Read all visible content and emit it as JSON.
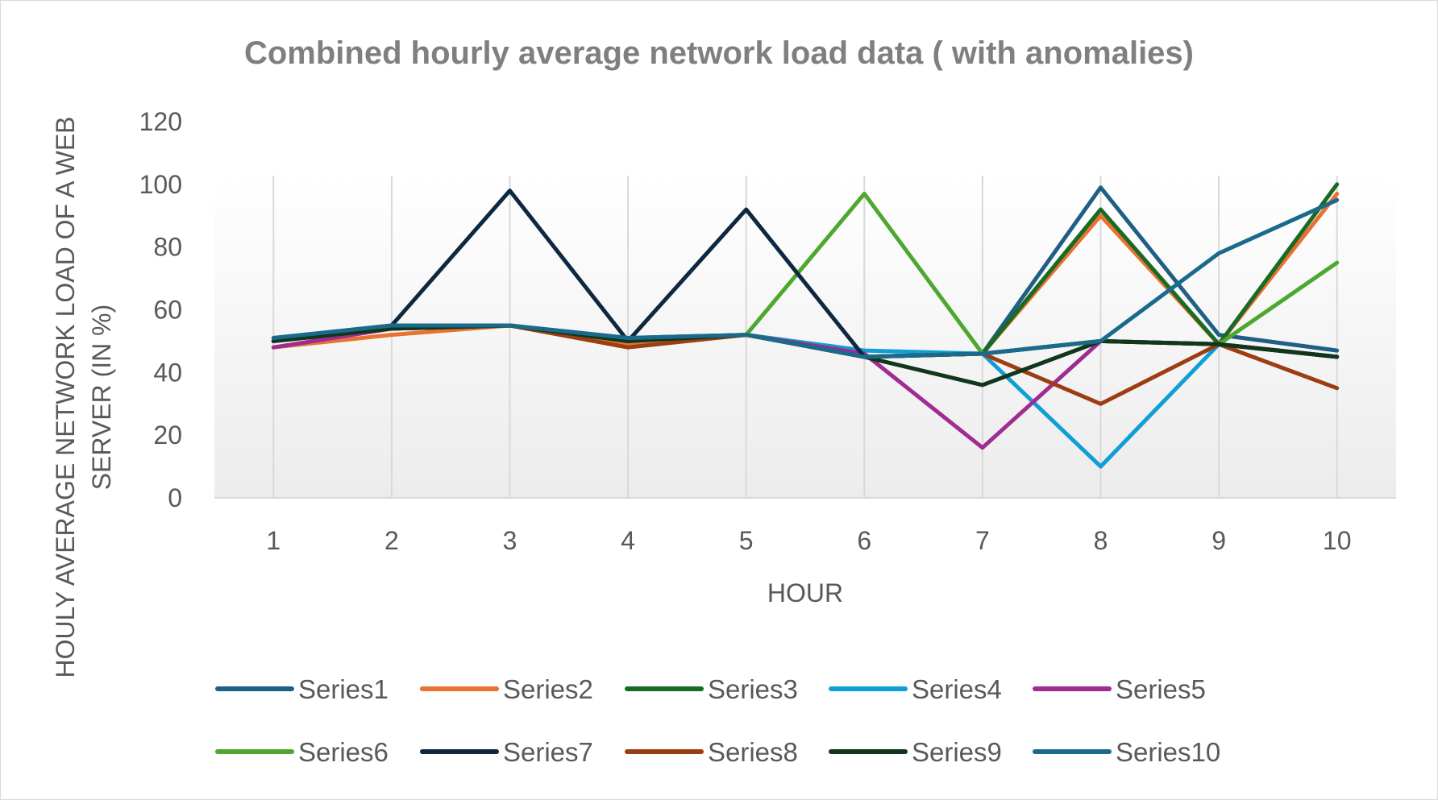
{
  "chart_data": {
    "type": "line",
    "title": "Combined hourly average network load data ( with anomalies)",
    "xlabel": "HOUR",
    "ylabel_lines": [
      "HOULY AVERAGE NETWORK LOAD OF A WEB",
      "SERVER (IN %)"
    ],
    "categories": [
      "1",
      "2",
      "3",
      "4",
      "5",
      "6",
      "7",
      "8",
      "9",
      "10"
    ],
    "ylim": [
      0,
      120
    ],
    "yticks": [
      "0",
      "20",
      "40",
      "60",
      "80",
      "100",
      "120"
    ],
    "grid": "vertical",
    "legend_position": "bottom",
    "series": [
      {
        "name": "Series1",
        "color": "#1f5f86",
        "values": [
          51,
          55,
          55,
          51,
          52,
          45,
          46,
          99,
          52,
          47
        ]
      },
      {
        "name": "Series2",
        "color": "#e97132",
        "values": [
          48,
          52,
          55,
          49,
          52,
          45,
          46,
          90,
          49,
          97
        ]
      },
      {
        "name": "Series3",
        "color": "#196b24",
        "values": [
          50,
          54,
          55,
          50,
          52,
          45,
          46,
          92,
          49,
          100
        ]
      },
      {
        "name": "Series4",
        "color": "#0f9ed5",
        "values": [
          50,
          54,
          55,
          50,
          52,
          47,
          46,
          10,
          49,
          45
        ]
      },
      {
        "name": "Series5",
        "color": "#a02b93",
        "values": [
          48,
          54,
          55,
          50,
          52,
          46,
          16,
          50,
          49,
          45
        ]
      },
      {
        "name": "Series6",
        "color": "#4ea72e",
        "values": [
          50,
          54,
          55,
          50,
          52,
          97,
          46,
          50,
          49,
          75
        ]
      },
      {
        "name": "Series7",
        "color": "#0e2841",
        "values": [
          50,
          55,
          98,
          50,
          92,
          45,
          46,
          50,
          49,
          45
        ]
      },
      {
        "name": "Series8",
        "color": "#9c3d12",
        "values": [
          50,
          54,
          55,
          48,
          52,
          45,
          46,
          30,
          49,
          35
        ]
      },
      {
        "name": "Series9",
        "color": "#10361b",
        "values": [
          50,
          54,
          55,
          50,
          52,
          45,
          36,
          50,
          49,
          45
        ]
      },
      {
        "name": "Series10",
        "color": "#196b8c",
        "values": [
          51,
          55,
          55,
          51,
          52,
          45,
          46,
          50,
          78,
          95
        ]
      }
    ]
  }
}
